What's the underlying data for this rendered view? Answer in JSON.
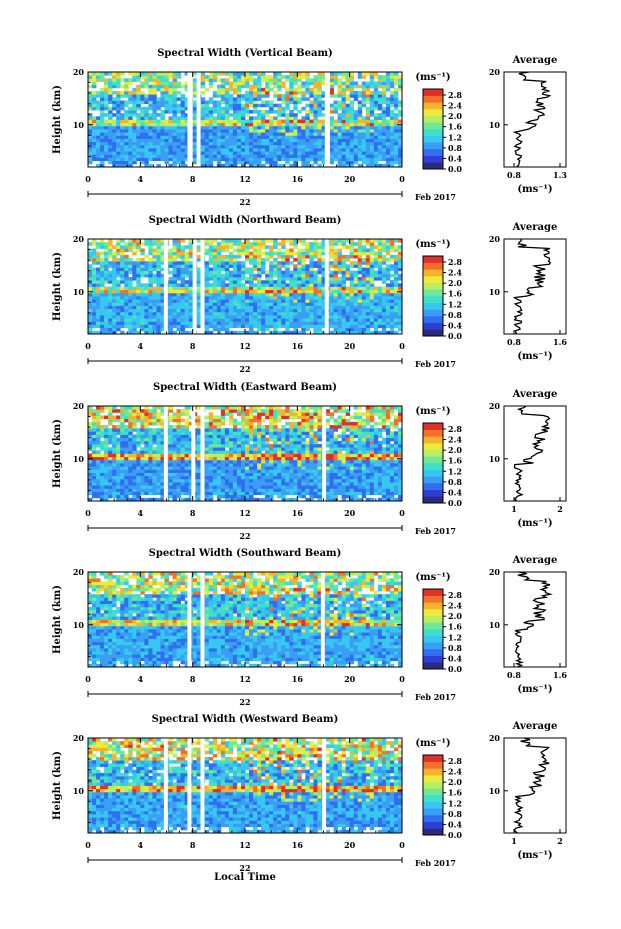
{
  "chart_data": [
    {
      "type": "heatmap",
      "title": "Spectral Width (Vertical Beam)",
      "ylabel": "Height (km)",
      "x_ticks": [
        "0",
        "4",
        "8",
        "12",
        "16",
        "20",
        "0"
      ],
      "y_ticks": [
        "20",
        "10"
      ],
      "date_label": "22",
      "month_label": "Feb 2017",
      "colorbar_unit": "(ms⁻¹)",
      "colorbar_ticks": [
        "2.8",
        "2.4",
        "2.0",
        "1.6",
        "1.2",
        "0.8",
        "0.4",
        "0.0"
      ],
      "xlim": [
        0,
        24
      ],
      "ylim": [
        2,
        20
      ],
      "gaps_hours": [
        [
          7.6,
          8.0
        ],
        [
          8.3,
          8.6
        ],
        [
          18.1,
          18.5
        ]
      ],
      "average_title": "Average",
      "average_xticks": [
        "0.8",
        "1.3"
      ],
      "average_xunit": "(ms⁻¹)",
      "average_xlim": [
        0.6,
        1.4
      ],
      "average_yticks": [
        "20",
        "10"
      ]
    },
    {
      "type": "heatmap",
      "title": "Spectral Width (Northward Beam)",
      "ylabel": "Height (km)",
      "x_ticks": [
        "0",
        "4",
        "8",
        "12",
        "16",
        "20",
        "0"
      ],
      "y_ticks": [
        "20",
        "10"
      ],
      "date_label": "22",
      "month_label": "Feb 2017",
      "colorbar_unit": "(ms⁻¹)",
      "colorbar_ticks": [
        "2.8",
        "2.4",
        "2.0",
        "1.6",
        "1.2",
        "0.8",
        "0.4",
        "0.0"
      ],
      "xlim": [
        0,
        24
      ],
      "ylim": [
        2,
        20
      ],
      "gaps_hours": [
        [
          5.8,
          6.1
        ],
        [
          8.0,
          8.3
        ],
        [
          8.6,
          8.9
        ],
        [
          18.1,
          18.4
        ]
      ],
      "average_title": "Average",
      "average_xticks": [
        "0.8",
        "1.6"
      ],
      "average_xunit": "(ms⁻¹)",
      "average_xlim": [
        0.6,
        1.7
      ],
      "average_yticks": [
        "20",
        "10"
      ]
    },
    {
      "type": "heatmap",
      "title": "Spectral Width (Eastward Beam)",
      "ylabel": "Height (km)",
      "x_ticks": [
        "0",
        "4",
        "8",
        "12",
        "16",
        "20",
        "0"
      ],
      "y_ticks": [
        "20",
        "10"
      ],
      "date_label": "22",
      "month_label": "Feb 2017",
      "colorbar_unit": "(ms⁻¹)",
      "colorbar_ticks": [
        "2.8",
        "2.4",
        "2.0",
        "1.6",
        "1.2",
        "0.8",
        "0.4",
        "0.0"
      ],
      "xlim": [
        0,
        24
      ],
      "ylim": [
        2,
        20
      ],
      "gaps_hours": [
        [
          5.8,
          6.1
        ],
        [
          7.9,
          8.2
        ],
        [
          8.6,
          8.9
        ],
        [
          17.9,
          18.2
        ]
      ],
      "average_title": "Average",
      "average_xticks": [
        "1",
        "2"
      ],
      "average_xunit": "(ms⁻¹)",
      "average_xlim": [
        0.5,
        2.2
      ],
      "average_yticks": [
        "20",
        "10"
      ]
    },
    {
      "type": "heatmap",
      "title": "Spectral Width (Southward Beam)",
      "ylabel": "Height (km)",
      "x_ticks": [
        "0",
        "4",
        "8",
        "12",
        "16",
        "20",
        "0"
      ],
      "y_ticks": [
        "20",
        "10"
      ],
      "date_label": "22",
      "month_label": "Feb 2017",
      "colorbar_unit": "(ms⁻¹)",
      "colorbar_ticks": [
        "2.8",
        "2.4",
        "2.0",
        "1.6",
        "1.2",
        "0.8",
        "0.4",
        "0.0"
      ],
      "xlim": [
        0,
        24
      ],
      "ylim": [
        2,
        20
      ],
      "gaps_hours": [
        [
          7.6,
          7.9
        ],
        [
          8.6,
          8.9
        ],
        [
          17.8,
          18.1
        ]
      ],
      "average_title": "Average",
      "average_xticks": [
        "0.8",
        "1.6"
      ],
      "average_xunit": "(ms⁻¹)",
      "average_xlim": [
        0.6,
        1.7
      ],
      "average_yticks": [
        "20",
        "10"
      ]
    },
    {
      "type": "heatmap",
      "title": "Spectral Width (Westward Beam)",
      "ylabel": "Height (km)",
      "xlabel": "Local Time",
      "x_ticks": [
        "0",
        "4",
        "8",
        "12",
        "16",
        "20",
        "0"
      ],
      "y_ticks": [
        "20",
        "10"
      ],
      "date_label": "22",
      "month_label": "Feb 2017",
      "colorbar_unit": "(ms⁻¹)",
      "colorbar_ticks": [
        "2.8",
        "2.4",
        "2.0",
        "1.6",
        "1.2",
        "0.8",
        "0.4",
        "0.0"
      ],
      "xlim": [
        0,
        24
      ],
      "ylim": [
        2,
        20
      ],
      "gaps_hours": [
        [
          5.8,
          6.1
        ],
        [
          7.6,
          7.9
        ],
        [
          8.6,
          8.9
        ],
        [
          17.9,
          18.2
        ]
      ],
      "average_title": "Average",
      "average_xticks": [
        "1",
        "2"
      ],
      "average_xunit": "(ms⁻¹)",
      "average_xlim": [
        0.5,
        2.2
      ],
      "average_yticks": [
        "20",
        "10"
      ]
    }
  ],
  "colormap": [
    "#2b2b7a",
    "#2f3fd6",
    "#2f6ff0",
    "#3a9ef5",
    "#36c8f0",
    "#3ee0c8",
    "#6ee89a",
    "#b8ee60",
    "#eeea3c",
    "#f6b22c",
    "#f2702a",
    "#e0302a"
  ]
}
